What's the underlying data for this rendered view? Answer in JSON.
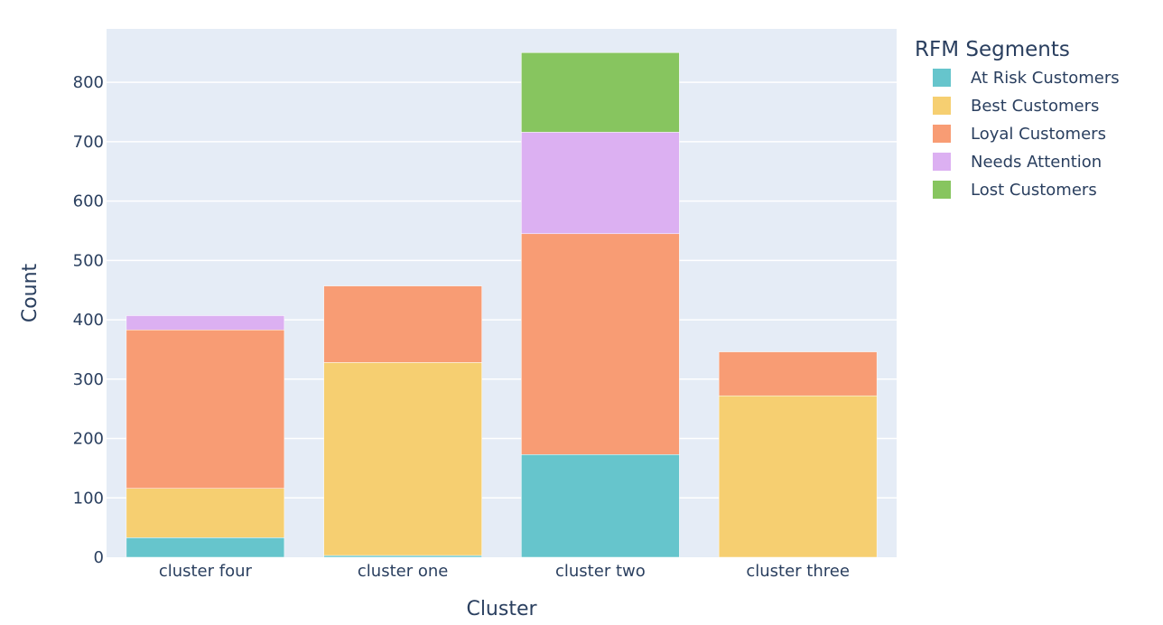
{
  "chart_data": {
    "type": "bar",
    "stacked": true,
    "categories": [
      "cluster four",
      "cluster one",
      "cluster two",
      "cluster three"
    ],
    "series": [
      {
        "name": "At Risk Customers",
        "color": "#66c5cc",
        "values": [
          33,
          3,
          173,
          0
        ]
      },
      {
        "name": "Best Customers",
        "color": "#f6cf71",
        "values": [
          83,
          325,
          0,
          272
        ]
      },
      {
        "name": "Loyal Customers",
        "color": "#f89c74",
        "values": [
          267,
          129,
          372,
          74
        ]
      },
      {
        "name": "Needs Attention",
        "color": "#dcb0f2",
        "values": [
          24,
          0,
          171,
          0
        ]
      },
      {
        "name": "Lost Customers",
        "color": "#87c55f",
        "values": [
          0,
          0,
          134,
          0
        ]
      }
    ],
    "xlabel": "Cluster",
    "ylabel": "Count",
    "ylim": [
      0,
      890
    ],
    "yticks": [
      0,
      100,
      200,
      300,
      400,
      500,
      600,
      700,
      800
    ],
    "grid": true,
    "legend": {
      "title": "RFM Segments",
      "placement": "top-right"
    },
    "plot_background": "#e5ecf6",
    "text_color": "#2a3f5f"
  }
}
